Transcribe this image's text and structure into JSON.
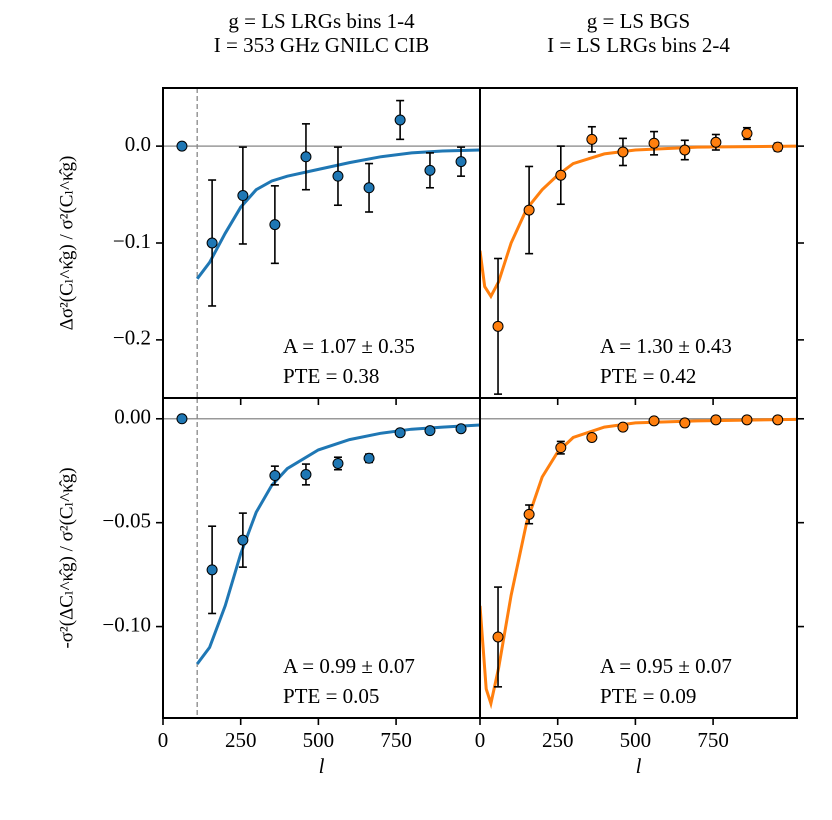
{
  "chart_data": [
    {
      "type": "errorbar",
      "title": [
        "g = LS LRGs bins 1-4",
        "I = 353 GHz GNILC CIB"
      ],
      "ylabel": "Δσ²(Cₗ^κ̂g) / σ²(Cₗ^κ̂g)",
      "color": "#1f77b4",
      "x": [
        61,
        158,
        257,
        360,
        460,
        563,
        663,
        763,
        859,
        959
      ],
      "values": [
        0.0,
        -0.1,
        -0.051,
        -0.081,
        -0.011,
        -0.031,
        -0.043,
        0.027,
        -0.025,
        -0.016
      ],
      "errors": [
        0,
        0.065,
        0.05,
        0.04,
        0.034,
        0.03,
        0.025,
        0.02,
        0.018,
        0.015
      ],
      "curve": {
        "x": [
          110,
          150,
          200,
          250,
          300,
          350,
          400,
          500,
          600,
          700,
          800,
          900,
          1020
        ],
        "values": [
          -0.137,
          -0.12,
          -0.09,
          -0.063,
          -0.045,
          -0.036,
          -0.031,
          -0.024,
          -0.017,
          -0.011,
          -0.007,
          -0.005,
          -0.004
        ]
      },
      "hline": 0,
      "vline": 110,
      "xlim": [
        0,
        1020
      ],
      "ylim": [
        -0.26,
        0.06
      ],
      "xticks": [
        0,
        250,
        500,
        750
      ],
      "xtick_labels": false,
      "yticks": [
        {
          "value": -0.2,
          "label": "−0.2"
        },
        {
          "value": -0.1,
          "label": "−0.1"
        },
        {
          "value": 0.0,
          "label": "0.0"
        }
      ],
      "ytick_side": "left",
      "annotations": [
        "A = 1.07 ± 0.35",
        "PTE = 0.38"
      ]
    },
    {
      "type": "errorbar",
      "title": [
        "g = LS BGS",
        "I = LS LRGs bins 2-4"
      ],
      "color": "#ff7f0e",
      "x": [
        58,
        158,
        260,
        360,
        460,
        560,
        659,
        759,
        859,
        958
      ],
      "values": [
        -0.186,
        -0.066,
        -0.03,
        0.007,
        -0.006,
        0.003,
        -0.004,
        0.004,
        0.013,
        -0.001
      ],
      "errors": [
        0.07,
        0.045,
        0.03,
        0.013,
        0.014,
        0.012,
        0.01,
        0.008,
        0.006,
        0.004
      ],
      "curve": {
        "x": [
          0,
          15,
          35,
          60,
          100,
          150,
          200,
          250,
          300,
          400,
          500,
          700,
          1020
        ],
        "values": [
          -0.108,
          -0.145,
          -0.155,
          -0.14,
          -0.1,
          -0.065,
          -0.045,
          -0.03,
          -0.018,
          -0.008,
          -0.004,
          -0.001,
          0.0
        ]
      },
      "hline": 0,
      "xlim": [
        0,
        1020
      ],
      "ylim": [
        -0.26,
        0.06
      ],
      "xticks": [
        0,
        250,
        500,
        750
      ],
      "xtick_labels": false,
      "yticks": [
        {
          "value": -0.2,
          "label": "−0.2"
        },
        {
          "value": -0.1,
          "label": "−0.1"
        },
        {
          "value": 0.0,
          "label": "0.0"
        }
      ],
      "ytick_side": "right",
      "annotations": [
        "A = 1.30 ± 0.43",
        "PTE = 0.42"
      ]
    },
    {
      "type": "errorbar",
      "ylabel": "-σ²(ΔCₗ^κ̂g) / σ²(Cₗ^κ̂g)",
      "xlabel": "l",
      "color": "#1f77b4",
      "x": [
        61,
        158,
        257,
        360,
        460,
        563,
        663,
        763,
        859,
        959
      ],
      "values": [
        0.0,
        -0.0727,
        -0.0584,
        -0.0273,
        -0.0268,
        -0.0215,
        -0.019,
        -0.0067,
        -0.0057,
        -0.0048
      ],
      "errors": [
        0,
        0.021,
        0.013,
        0.0045,
        0.005,
        0.003,
        0.002,
        0.001,
        0.0008,
        0.0007
      ],
      "curve": {
        "x": [
          110,
          150,
          200,
          250,
          300,
          350,
          400,
          500,
          600,
          700,
          800,
          900,
          1020
        ],
        "values": [
          -0.118,
          -0.11,
          -0.09,
          -0.065,
          -0.045,
          -0.032,
          -0.024,
          -0.015,
          -0.01,
          -0.007,
          -0.005,
          -0.004,
          -0.003
        ]
      },
      "hline": 0,
      "vline": 110,
      "xlim": [
        0,
        1020
      ],
      "ylim": [
        -0.144,
        0.01
      ],
      "xticks": [
        0,
        250,
        500,
        750
      ],
      "yticks": [
        {
          "value": -0.1,
          "label": "−0.10"
        },
        {
          "value": -0.05,
          "label": "−0.05"
        },
        {
          "value": 0.0,
          "label": "0.00"
        }
      ],
      "ytick_side": "left",
      "annotations": [
        "A = 0.99 ± 0.07",
        "PTE = 0.05"
      ]
    },
    {
      "type": "errorbar",
      "xlabel": "l",
      "color": "#ff7f0e",
      "x": [
        58,
        158,
        260,
        360,
        460,
        560,
        659,
        759,
        859,
        958
      ],
      "values": [
        -0.105,
        -0.046,
        -0.0139,
        -0.009,
        -0.004,
        -0.001,
        -0.002,
        -0.0005,
        -0.0005,
        -0.0005
      ],
      "errors": [
        0.024,
        0.0045,
        0.003,
        0.001,
        0.0008,
        0.0006,
        0.0005,
        0.0004,
        0.0004,
        0.0003
      ],
      "curve": {
        "x": [
          0,
          20,
          35,
          60,
          100,
          150,
          200,
          250,
          300,
          400,
          500,
          700,
          1020
        ],
        "values": [
          -0.09,
          -0.13,
          -0.137,
          -0.12,
          -0.085,
          -0.05,
          -0.028,
          -0.016,
          -0.009,
          -0.004,
          -0.002,
          -0.001,
          -0.0003
        ]
      },
      "hline": 0,
      "xlim": [
        0,
        1020
      ],
      "ylim": [
        -0.144,
        0.01
      ],
      "xticks": [
        0,
        250,
        500,
        750
      ],
      "yticks": [
        {
          "value": -0.1,
          "label": "−0.10"
        },
        {
          "value": -0.05,
          "label": "−0.05"
        },
        {
          "value": 0.0,
          "label": "0.00"
        }
      ],
      "ytick_side": "right",
      "annotations": [
        "A = 0.95 ± 0.07",
        "PTE = 0.09"
      ]
    }
  ]
}
